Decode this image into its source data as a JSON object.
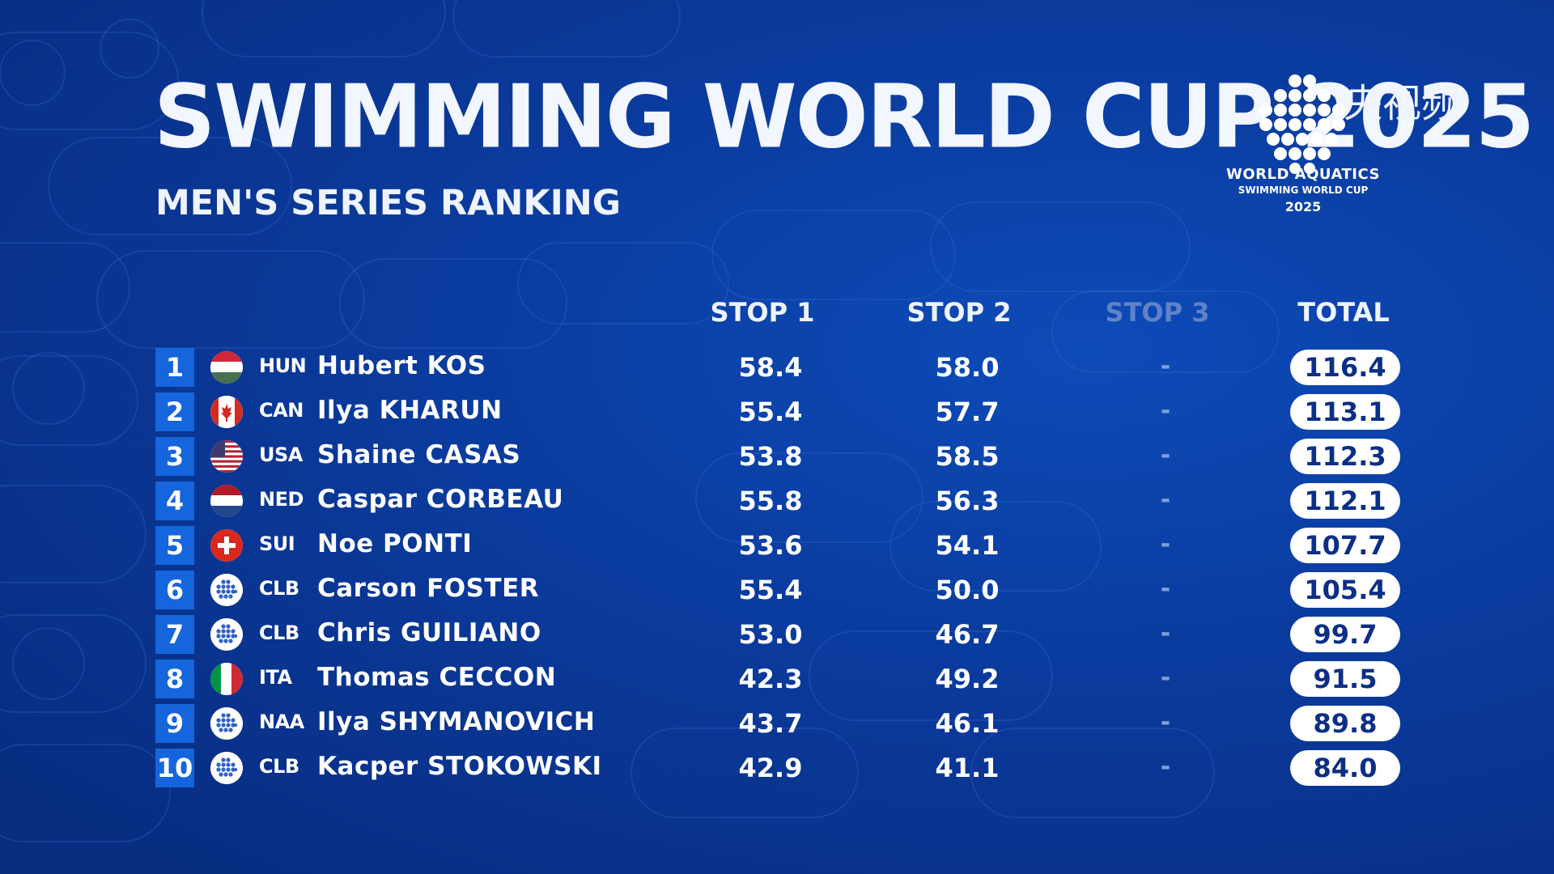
{
  "header": {
    "title": "SWIMMING WORLD CUP 2025",
    "subtitle": "MEN'S SERIES RANKING"
  },
  "broadcaster": {
    "name": "央视频"
  },
  "logo": {
    "line1": "WORLD AQUATICS",
    "line2": "SWIMMING WORLD CUP",
    "line3": "2025"
  },
  "columns": {
    "stop1": "STOP 1",
    "stop2": "STOP 2",
    "stop3": "STOP 3",
    "total": "TOTAL"
  },
  "rows": [
    {
      "rank": "1",
      "code": "HUN",
      "name": "Hubert KOS",
      "stop1": "58.4",
      "stop2": "58.0",
      "stop3": "-",
      "total": "116.4",
      "flag": "hungary-flag"
    },
    {
      "rank": "2",
      "code": "CAN",
      "name": "Ilya KHARUN",
      "stop1": "55.4",
      "stop2": "57.7",
      "stop3": "-",
      "total": "113.1",
      "flag": "canada-flag"
    },
    {
      "rank": "3",
      "code": "USA",
      "name": "Shaine CASAS",
      "stop1": "53.8",
      "stop2": "58.5",
      "stop3": "-",
      "total": "112.3",
      "flag": "usa-flag"
    },
    {
      "rank": "4",
      "code": "NED",
      "name": "Caspar CORBEAU",
      "stop1": "55.8",
      "stop2": "56.3",
      "stop3": "-",
      "total": "112.1",
      "flag": "netherlands-flag"
    },
    {
      "rank": "5",
      "code": "SUI",
      "name": "Noe PONTI",
      "stop1": "53.6",
      "stop2": "54.1",
      "stop3": "-",
      "total": "107.7",
      "flag": "switzerland-flag"
    },
    {
      "rank": "6",
      "code": "CLB",
      "name": "Carson FOSTER",
      "stop1": "55.4",
      "stop2": "50.0",
      "stop3": "-",
      "total": "105.4",
      "flag": "world-aquatics-flag"
    },
    {
      "rank": "7",
      "code": "CLB",
      "name": "Chris GUILIANO",
      "stop1": "53.0",
      "stop2": "46.7",
      "stop3": "-",
      "total": "99.7",
      "flag": "world-aquatics-flag"
    },
    {
      "rank": "8",
      "code": "ITA",
      "name": "Thomas CECCON",
      "stop1": "42.3",
      "stop2": "49.2",
      "stop3": "-",
      "total": "91.5",
      "flag": "italy-flag"
    },
    {
      "rank": "9",
      "code": "NAA",
      "name": "Ilya SHYMANOVICH",
      "stop1": "43.7",
      "stop2": "46.1",
      "stop3": "-",
      "total": "89.8",
      "flag": "world-aquatics-flag"
    },
    {
      "rank": "10",
      "code": "CLB",
      "name": "Kacper STOKOWSKI",
      "stop1": "42.9",
      "stop2": "41.1",
      "stop3": "-",
      "total": "84.0",
      "flag": "world-aquatics-flag"
    }
  ],
  "colors": {
    "background": "#0a3a9c",
    "rank_badge": "#1565dc",
    "total_pill": "#ffffff",
    "total_text": "#0b2f86",
    "dim_header": "#5f82c8"
  }
}
